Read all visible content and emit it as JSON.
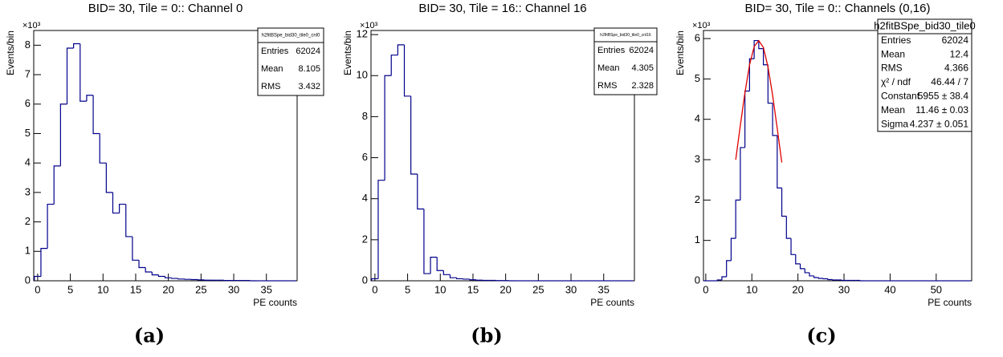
{
  "chart_data": [
    {
      "type": "histogram",
      "title": "BID= 30, Tile = 0:: Channel 0",
      "x_label": "PE counts",
      "y_label": "Events/bin",
      "y_multiplier": "×10³",
      "caption": "(a)",
      "color": "#00008b",
      "bins": [
        -0.5,
        0.5,
        1.5,
        2.5,
        3.5,
        4.5,
        5.5,
        6.5,
        7.5,
        8.5,
        9.5,
        10.5,
        11.5,
        12.5,
        13.5,
        14.5,
        15.5,
        16.5,
        17.5,
        18.5,
        19.5,
        20.5,
        21.5,
        22.5,
        23.5,
        24.5,
        25.5,
        26.5,
        27.5,
        28.5,
        29.5,
        30.5,
        31.5,
        32.5,
        33.5,
        34.5,
        35.5,
        36.5,
        37.5,
        38.5,
        39.5
      ],
      "values": [
        0.15,
        1.1,
        2.6,
        3.9,
        6.0,
        7.9,
        8.05,
        6.1,
        6.3,
        5.0,
        4.0,
        3.0,
        2.3,
        2.6,
        1.5,
        0.7,
        0.45,
        0.3,
        0.2,
        0.15,
        0.1,
        0.08,
        0.06,
        0.05,
        0.04,
        0.03,
        0.02,
        0.02,
        0.02,
        0.01,
        0.01,
        0.01,
        0.01,
        0,
        0,
        0,
        0,
        0,
        0,
        0
      ],
      "xlim": [
        -0.6,
        39.7
      ],
      "xticks": [
        0,
        5,
        10,
        15,
        20,
        25,
        30,
        35
      ],
      "ylim": [
        0,
        8.5
      ],
      "yticks": [
        0,
        1,
        2,
        3,
        4,
        5,
        6,
        7,
        8
      ],
      "stats": {
        "title": "h2fitBSpe_bid30_tile0_cnl0",
        "rows": [
          [
            "Entries",
            "62024"
          ],
          [
            "Mean",
            "8.105"
          ],
          [
            "RMS",
            "3.432"
          ]
        ]
      }
    },
    {
      "type": "histogram",
      "title": "BID= 30, Tile = 16:: Channel 16",
      "x_label": "PE counts",
      "y_label": "Events/bin",
      "y_multiplier": "×10³",
      "caption": "(b)",
      "color": "#00008b",
      "bins": [
        -0.5,
        0.5,
        1.5,
        2.5,
        3.5,
        4.5,
        5.5,
        6.5,
        7.5,
        8.5,
        9.5,
        10.5,
        11.5,
        12.5,
        13.5,
        14.5,
        15.5,
        16.5,
        17.5,
        18.5,
        19.5,
        20.5,
        21.5,
        22.5,
        23.5,
        24.5,
        25.5,
        26.5,
        27.5,
        28.5,
        29.5,
        30.5,
        31.5,
        32.5,
        33.5,
        34.5,
        35.5,
        36.5,
        37.5,
        38.5,
        39.5
      ],
      "values": [
        0.1,
        4.9,
        10.0,
        11.0,
        11.5,
        9.0,
        5.2,
        3.5,
        0.35,
        1.15,
        0.5,
        0.3,
        0.15,
        0.1,
        0.08,
        0.05,
        0.03,
        0.02,
        0.02,
        0.01,
        0.01,
        0,
        0,
        0,
        0,
        0,
        0,
        0,
        0,
        0,
        0,
        0,
        0,
        0,
        0,
        0,
        0,
        0,
        0,
        0
      ],
      "xlim": [
        -0.6,
        39.7
      ],
      "xticks": [
        0,
        5,
        10,
        15,
        20,
        25,
        30,
        35
      ],
      "ylim": [
        0,
        12.2
      ],
      "yticks": [
        0,
        2,
        4,
        6,
        8,
        10,
        12
      ],
      "stats": {
        "title": "h2fitBSpe_bid30_tile0_cnl16",
        "rows": [
          [
            "Entries",
            "62024"
          ],
          [
            "Mean",
            "4.305"
          ],
          [
            "RMS",
            "2.328"
          ]
        ]
      }
    },
    {
      "type": "histogram",
      "title": "BID= 30, Tile = 0:: Channels (0,16)",
      "x_label": "PE counts",
      "y_label": "Events/bin",
      "y_multiplier": "×10³",
      "caption": "(c)",
      "color": "#00008b",
      "bins": [
        -0.5,
        0.5,
        1.5,
        2.5,
        3.5,
        4.5,
        5.5,
        6.5,
        7.5,
        8.5,
        9.5,
        10.5,
        11.5,
        12.5,
        13.5,
        14.5,
        15.5,
        16.5,
        17.5,
        18.5,
        19.5,
        20.5,
        21.5,
        22.5,
        23.5,
        24.5,
        25.5,
        26.5,
        27.5,
        28.5,
        29.5,
        30.5,
        31.5,
        32.5,
        33.5,
        34.5,
        35.5,
        36.5,
        37.5,
        38.5,
        39.5,
        40.5,
        41.5,
        42.5,
        43.5,
        44.5,
        45.5,
        46.5,
        47.5,
        48.5,
        49.5,
        50.5,
        51.5,
        52.5,
        53.5,
        54.5,
        55.5,
        56.5,
        57.5
      ],
      "values": [
        0,
        0,
        0,
        0.02,
        0.1,
        0.5,
        1.05,
        2.0,
        3.3,
        4.7,
        5.5,
        5.95,
        5.75,
        5.35,
        4.4,
        3.6,
        2.3,
        1.6,
        1.05,
        0.65,
        0.42,
        0.3,
        0.2,
        0.12,
        0.08,
        0.06,
        0.05,
        0.03,
        0.02,
        0.02,
        0.01,
        0.01,
        0.01,
        0.01,
        0,
        0,
        0,
        0,
        0,
        0,
        0,
        0,
        0,
        0,
        0,
        0,
        0,
        0,
        0,
        0,
        0,
        0,
        0,
        0,
        0,
        0,
        0,
        0
      ],
      "fit": {
        "color": "#e00000",
        "x": [
          6.5,
          7.5,
          8.5,
          9.5,
          10.5,
          11.5,
          12.5,
          13.5,
          14.5,
          15.5,
          16.5
        ],
        "values": [
          3.0,
          3.85,
          4.66,
          5.35,
          5.8,
          5.95,
          5.78,
          5.3,
          4.6,
          3.78,
          2.93
        ]
      },
      "xlim": [
        -0.5,
        57.7
      ],
      "xticks": [
        0,
        10,
        20,
        30,
        40,
        50
      ],
      "ylim": [
        0,
        6.2
      ],
      "yticks": [
        0,
        1,
        2,
        3,
        4,
        5,
        6
      ],
      "stats": {
        "title": "h2fitBSpe_bid30_tile0",
        "rows": [
          [
            "Entries",
            "62024"
          ],
          [
            "Mean",
            "12.4"
          ],
          [
            "RMS",
            "4.366"
          ],
          [
            "χ² / ndf",
            "46.44 / 7"
          ],
          [
            "Constant",
            "5955 ± 38.4"
          ],
          [
            "Mean",
            "11.46 ± 0.03"
          ],
          [
            "Sigma",
            "4.237 ± 0.051"
          ]
        ]
      }
    }
  ]
}
